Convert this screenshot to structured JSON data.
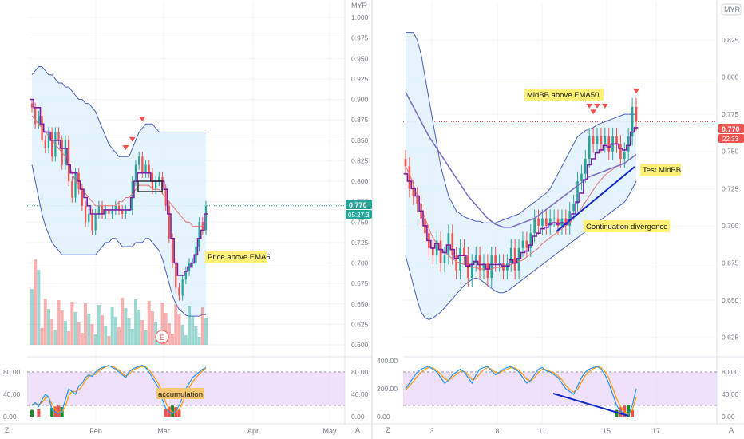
{
  "colors": {
    "up": "#26a69a",
    "down": "#ef5350",
    "bb_line": "#4a5fc1",
    "bb_fill": "#dff1fb",
    "ema_fast": "#7b1fa2",
    "ema_slow": "#e57373",
    "ema50": "#7e6fc4",
    "stoch_k": "#2196f3",
    "stoch_d": "#ff9800",
    "stoch_band": "#ead5fb",
    "price_label_left": "#26a69a",
    "price_label_right": "#ef5350",
    "trend": "#1328c8",
    "annotation_bg": "#fff176",
    "signal_triangle": "#ef5350"
  },
  "left": {
    "currency": "MYR",
    "y_ticks": [
      "1.000",
      "0.975",
      "0.950",
      "0.925",
      "0.900",
      "0.875",
      "0.850",
      "0.825",
      "0.800",
      "0.775",
      "0.750",
      "0.725",
      "0.700",
      "0.675",
      "0.650",
      "0.625",
      "0.600"
    ],
    "price_label": "0.770",
    "countdown": "05:27:3",
    "x_ticks": [
      "Feb",
      "Mar",
      "Apr",
      "May"
    ],
    "annotation": "Price above EMA6",
    "earnings_marker": "E",
    "stoch_ticks": [
      "80.00",
      "40.00",
      "0.00"
    ],
    "stoch_annotation": "accumulation",
    "corner_left": "Z",
    "corner_right": "A"
  },
  "right": {
    "currency": "MYR",
    "y_ticks": [
      "0.825",
      "0.800",
      "0.775",
      "0.750",
      "0.725",
      "0.700",
      "0.675",
      "0.650",
      "0.625"
    ],
    "price_label": "0.770",
    "countdown": "22:33",
    "x_ticks": [
      "3",
      "8",
      "11",
      "15",
      "17"
    ],
    "annotation_midbb": "MidBB above EMA50",
    "annotation_test": "Test MidBB",
    "annotation_div": "Continuation divergence",
    "stoch_ticks_right": [
      "80.00",
      "40.00",
      "0.00"
    ],
    "stoch_ticks_left": [
      "400.00",
      "200.00",
      "0.00"
    ],
    "corner_left": "Z",
    "corner_right": "A"
  },
  "chart_data": [
    {
      "type": "candlestick",
      "title": "",
      "currency": "MYR",
      "ylim": [
        0.6,
        1.0
      ],
      "x_ticks": [
        "Feb",
        "Mar",
        "Apr",
        "May"
      ],
      "close": [
        0.89,
        0.87,
        0.88,
        0.85,
        0.84,
        0.86,
        0.83,
        0.86,
        0.85,
        0.82,
        0.85,
        0.8,
        0.78,
        0.81,
        0.79,
        0.77,
        0.75,
        0.76,
        0.74,
        0.76,
        0.77,
        0.76,
        0.765,
        0.76,
        0.765,
        0.77,
        0.765,
        0.76,
        0.765,
        0.765,
        0.8,
        0.82,
        0.83,
        0.81,
        0.82,
        0.81,
        0.79,
        0.8,
        0.805,
        0.79,
        0.77,
        0.73,
        0.7,
        0.67,
        0.66,
        0.68,
        0.69,
        0.7,
        0.7,
        0.72,
        0.75,
        0.74,
        0.77
      ],
      "ema_fast": [
        0.9,
        0.89,
        0.89,
        0.87,
        0.86,
        0.86,
        0.85,
        0.85,
        0.85,
        0.84,
        0.84,
        0.82,
        0.81,
        0.81,
        0.8,
        0.79,
        0.78,
        0.77,
        0.76,
        0.76,
        0.76,
        0.76,
        0.765,
        0.765,
        0.765,
        0.765,
        0.765,
        0.765,
        0.765,
        0.765,
        0.78,
        0.8,
        0.81,
        0.81,
        0.81,
        0.81,
        0.8,
        0.8,
        0.8,
        0.8,
        0.79,
        0.76,
        0.73,
        0.7,
        0.685,
        0.685,
        0.69,
        0.695,
        0.7,
        0.71,
        0.73,
        0.74,
        0.76
      ],
      "ema_slow": [
        0.88,
        0.875,
        0.87,
        0.865,
        0.86,
        0.855,
        0.85,
        0.845,
        0.84,
        0.835,
        0.83,
        0.82,
        0.81,
        0.8,
        0.795,
        0.79,
        0.785,
        0.78,
        0.775,
        0.77,
        0.77,
        0.77,
        0.77,
        0.77,
        0.77,
        0.77,
        0.775,
        0.775,
        0.78,
        0.78,
        0.785,
        0.79,
        0.795,
        0.795,
        0.795,
        0.795,
        0.79,
        0.79,
        0.79,
        0.785,
        0.78,
        0.775,
        0.77,
        0.765,
        0.76,
        0.755,
        0.75,
        0.75,
        0.745,
        0.745,
        0.745,
        0.745,
        0.75
      ],
      "bb_upper": [
        0.93,
        0.935,
        0.94,
        0.94,
        0.935,
        0.93,
        0.93,
        0.925,
        0.92,
        0.92,
        0.915,
        0.915,
        0.91,
        0.905,
        0.9,
        0.9,
        0.895,
        0.895,
        0.89,
        0.885,
        0.875,
        0.865,
        0.855,
        0.845,
        0.84,
        0.835,
        0.83,
        0.83,
        0.83,
        0.83,
        0.84,
        0.85,
        0.86,
        0.865,
        0.87,
        0.87,
        0.87,
        0.865,
        0.86,
        0.86,
        0.86,
        0.86,
        0.86,
        0.86,
        0.86,
        0.86,
        0.86,
        0.86,
        0.86,
        0.86,
        0.86,
        0.86,
        0.86
      ],
      "bb_lower": [
        0.82,
        0.8,
        0.78,
        0.76,
        0.745,
        0.735,
        0.725,
        0.72,
        0.715,
        0.71,
        0.71,
        0.71,
        0.71,
        0.71,
        0.71,
        0.71,
        0.71,
        0.71,
        0.71,
        0.71,
        0.715,
        0.72,
        0.725,
        0.725,
        0.73,
        0.73,
        0.725,
        0.72,
        0.72,
        0.72,
        0.72,
        0.725,
        0.725,
        0.725,
        0.73,
        0.73,
        0.725,
        0.72,
        0.715,
        0.705,
        0.69,
        0.675,
        0.66,
        0.65,
        0.643,
        0.64,
        0.636,
        0.635,
        0.635,
        0.635,
        0.635,
        0.637,
        0.637
      ],
      "signal_markers_at_bar": [
        28,
        30,
        33
      ],
      "annotation": "Price above EMA6",
      "last_price": 0.77,
      "stochastic": {
        "ylim": [
          0,
          100
        ],
        "ticks": [
          80,
          40,
          0
        ],
        "k": [
          20,
          25,
          18,
          30,
          40,
          35,
          12,
          8,
          5,
          10,
          30,
          50,
          45,
          40,
          55,
          60,
          70,
          75,
          72,
          80,
          85,
          88,
          90,
          92,
          88,
          85,
          80,
          75,
          70,
          80,
          85,
          88,
          90,
          92,
          88,
          80,
          70,
          60,
          50,
          30,
          15,
          8,
          5,
          10,
          20,
          35,
          50,
          60,
          70,
          75,
          80,
          85,
          88
        ],
        "d": [
          22,
          23,
          22,
          25,
          33,
          35,
          22,
          12,
          8,
          8,
          18,
          38,
          45,
          45,
          48,
          55,
          65,
          72,
          74,
          76,
          82,
          86,
          89,
          91,
          90,
          87,
          83,
          78,
          73,
          76,
          82,
          86,
          88,
          90,
          89,
          84,
          76,
          67,
          57,
          42,
          25,
          14,
          8,
          8,
          13,
          25,
          40,
          52,
          62,
          70,
          76,
          82,
          86
        ],
        "annotation": "accumulation"
      }
    },
    {
      "type": "candlestick",
      "title": "",
      "currency": "MYR",
      "ylim": [
        0.62,
        0.84
      ],
      "x_ticks": [
        "3",
        "8",
        "11",
        "15",
        "17"
      ],
      "close": [
        0.74,
        0.725,
        0.72,
        0.715,
        0.705,
        0.695,
        0.685,
        0.68,
        0.69,
        0.675,
        0.68,
        0.695,
        0.68,
        0.67,
        0.685,
        0.68,
        0.665,
        0.675,
        0.68,
        0.67,
        0.675,
        0.665,
        0.68,
        0.675,
        0.675,
        0.67,
        0.675,
        0.685,
        0.67,
        0.685,
        0.69,
        0.685,
        0.695,
        0.705,
        0.7,
        0.705,
        0.7,
        0.705,
        0.705,
        0.7,
        0.705,
        0.7,
        0.71,
        0.715,
        0.73,
        0.735,
        0.745,
        0.76,
        0.755,
        0.76,
        0.755,
        0.76,
        0.75,
        0.76,
        0.755,
        0.745,
        0.75,
        0.76,
        0.78,
        0.77
      ],
      "ema_fast": [
        0.735,
        0.73,
        0.725,
        0.72,
        0.71,
        0.7,
        0.69,
        0.685,
        0.688,
        0.684,
        0.682,
        0.687,
        0.684,
        0.678,
        0.68,
        0.68,
        0.673,
        0.674,
        0.676,
        0.674,
        0.674,
        0.671,
        0.674,
        0.674,
        0.674,
        0.673,
        0.673,
        0.677,
        0.675,
        0.678,
        0.682,
        0.683,
        0.687,
        0.693,
        0.695,
        0.698,
        0.699,
        0.701,
        0.702,
        0.701,
        0.702,
        0.701,
        0.704,
        0.708,
        0.716,
        0.722,
        0.731,
        0.741,
        0.745,
        0.749,
        0.751,
        0.754,
        0.753,
        0.755,
        0.755,
        0.752,
        0.751,
        0.754,
        0.763,
        0.766
      ],
      "ema_slow": [
        0.74,
        0.735,
        0.728,
        0.72,
        0.712,
        0.705,
        0.698,
        0.692,
        0.688,
        0.685,
        0.682,
        0.68,
        0.678,
        0.676,
        0.675,
        0.674,
        0.673,
        0.672,
        0.672,
        0.671,
        0.671,
        0.671,
        0.671,
        0.672,
        0.672,
        0.672,
        0.673,
        0.674,
        0.675,
        0.676,
        0.677,
        0.679,
        0.681,
        0.683,
        0.685,
        0.688,
        0.69,
        0.692,
        0.694,
        0.696,
        0.698,
        0.7,
        0.702,
        0.705,
        0.708,
        0.712,
        0.716,
        0.72,
        0.724,
        0.728,
        0.731,
        0.734,
        0.736,
        0.738,
        0.74,
        0.741,
        0.742,
        0.744,
        0.746,
        0.748
      ],
      "ema50": [
        0.79,
        0.785,
        0.78,
        0.775,
        0.77,
        0.765,
        0.76,
        0.756,
        0.752,
        0.748,
        0.744,
        0.74,
        0.736,
        0.732,
        0.728,
        0.724,
        0.72,
        0.717,
        0.714,
        0.711,
        0.708,
        0.705,
        0.703,
        0.701,
        0.7,
        0.699,
        0.699,
        0.699,
        0.7,
        0.701,
        0.702,
        0.703,
        0.704,
        0.705,
        0.707,
        0.709,
        0.711,
        0.713,
        0.715,
        0.717,
        0.719,
        0.721,
        0.723,
        0.725,
        0.727,
        0.729,
        0.731,
        0.733,
        0.734,
        0.735,
        0.736,
        0.737,
        0.738,
        0.739,
        0.74,
        0.741,
        0.742,
        0.744,
        0.746,
        0.748
      ],
      "bb_upper": [
        0.83,
        0.83,
        0.83,
        0.825,
        0.815,
        0.8,
        0.785,
        0.77,
        0.755,
        0.74,
        0.73,
        0.72,
        0.715,
        0.71,
        0.708,
        0.706,
        0.705,
        0.704,
        0.703,
        0.703,
        0.702,
        0.702,
        0.702,
        0.702,
        0.703,
        0.704,
        0.705,
        0.706,
        0.707,
        0.708,
        0.71,
        0.712,
        0.714,
        0.716,
        0.718,
        0.72,
        0.722,
        0.725,
        0.73,
        0.735,
        0.74,
        0.745,
        0.75,
        0.755,
        0.76,
        0.762,
        0.764,
        0.765,
        0.766,
        0.768,
        0.769,
        0.77,
        0.771,
        0.772,
        0.773,
        0.774,
        0.775,
        0.775,
        0.775,
        0.775
      ],
      "bb_lower": [
        0.68,
        0.67,
        0.66,
        0.65,
        0.642,
        0.638,
        0.637,
        0.638,
        0.64,
        0.642,
        0.645,
        0.648,
        0.651,
        0.654,
        0.657,
        0.66,
        0.662,
        0.664,
        0.665,
        0.664,
        0.662,
        0.66,
        0.658,
        0.656,
        0.655,
        0.655,
        0.656,
        0.658,
        0.66,
        0.662,
        0.664,
        0.666,
        0.668,
        0.67,
        0.672,
        0.674,
        0.676,
        0.678,
        0.68,
        0.682,
        0.684,
        0.686,
        0.688,
        0.69,
        0.692,
        0.694,
        0.696,
        0.698,
        0.7,
        0.702,
        0.704,
        0.706,
        0.708,
        0.71,
        0.712,
        0.714,
        0.716,
        0.72,
        0.725,
        0.73
      ],
      "signal_markers_at_bar": [
        47,
        48,
        49,
        51,
        59
      ],
      "annotations": [
        "MidBB above EMA50",
        "Test MidBB",
        "Continuation divergence"
      ],
      "last_price": 0.77,
      "stochastic": {
        "ylim": [
          0,
          100
        ],
        "ticks": [
          80,
          40,
          0
        ],
        "k": [
          50,
          60,
          70,
          80,
          85,
          88,
          90,
          85,
          80,
          70,
          60,
          65,
          75,
          80,
          85,
          80,
          70,
          60,
          75,
          85,
          88,
          90,
          82,
          75,
          80,
          85,
          88,
          90,
          85,
          80,
          70,
          60,
          65,
          75,
          85,
          88,
          82,
          80,
          75,
          70,
          60,
          50,
          45,
          40,
          55,
          70,
          80,
          85,
          88,
          90,
          85,
          75,
          60,
          40,
          20,
          10,
          5,
          2,
          20,
          50
        ],
        "d": [
          48,
          55,
          63,
          72,
          80,
          85,
          88,
          87,
          83,
          76,
          68,
          65,
          70,
          76,
          81,
          81,
          75,
          66,
          68,
          77,
          84,
          88,
          85,
          79,
          78,
          82,
          85,
          88,
          87,
          83,
          76,
          67,
          64,
          70,
          79,
          85,
          84,
          81,
          78,
          73,
          66,
          56,
          49,
          44,
          49,
          62,
          74,
          81,
          86,
          89,
          88,
          81,
          69,
          51,
          32,
          18,
          9,
          4,
          12,
          35
        ],
        "divergence_annotation": "Continuation divergence"
      }
    }
  ]
}
